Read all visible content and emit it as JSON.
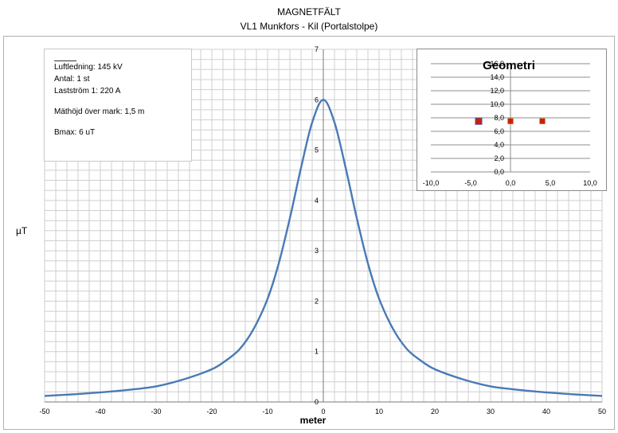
{
  "title": "MAGNETFÄLT",
  "subtitle": "VL1 Munkfors - Kil (Portalstolpe)",
  "info_box": {
    "line1": "Luftledning: 145 kV",
    "line2": "Antal: 1 st",
    "line3": "Lastström 1: 220 A",
    "line4": "Mäthöjd över mark: 1,5 m",
    "line5": "Bmax: 6 uT"
  },
  "chart_data": [
    {
      "type": "line",
      "title": "",
      "xlabel": "meter",
      "ylabel": "µT",
      "xlim": [
        -50,
        50
      ],
      "ylim": [
        0,
        7
      ],
      "x_ticks": [
        -50,
        -40,
        -30,
        -20,
        -10,
        0,
        10,
        20,
        30,
        40,
        50
      ],
      "y_ticks": [
        0,
        1,
        2,
        3,
        4,
        5,
        6,
        7
      ],
      "grid": true,
      "color": "#4a7ab5",
      "series": [
        {
          "x": [
            -50,
            -45,
            -40,
            -35,
            -30,
            -25,
            -20,
            -17.5,
            -15,
            -12.5,
            -10,
            -8,
            -6,
            -4,
            -2,
            0,
            2,
            4,
            6,
            8,
            10,
            12.5,
            15,
            17.5,
            20,
            25,
            30,
            35,
            40,
            45,
            50
          ],
          "y": [
            0.12,
            0.15,
            0.19,
            0.24,
            0.31,
            0.45,
            0.65,
            0.82,
            1.05,
            1.45,
            2.05,
            2.75,
            3.65,
            4.65,
            5.55,
            6.0,
            5.55,
            4.65,
            3.65,
            2.75,
            2.05,
            1.45,
            1.05,
            0.82,
            0.65,
            0.45,
            0.31,
            0.24,
            0.19,
            0.15,
            0.12
          ]
        }
      ]
    },
    {
      "type": "scatter",
      "title": "Geometri",
      "xlim": [
        -10,
        10
      ],
      "ylim": [
        0,
        16
      ],
      "x_ticks": [
        "-10,0",
        "-5,0",
        "0,0",
        "5,0",
        "10,0"
      ],
      "x_tick_values": [
        -10,
        -5,
        0,
        5,
        10
      ],
      "y_ticks": [
        "0,0",
        "2,0",
        "4,0",
        "6,0",
        "8,0",
        "10,0",
        "12,0",
        "14,0",
        "16,0"
      ],
      "y_tick_values": [
        0,
        2,
        4,
        6,
        8,
        10,
        12,
        14,
        16
      ],
      "grid": true,
      "legend": "none",
      "series": [
        {
          "marker_color": "#4a4aa8",
          "x": [
            -4
          ],
          "y": [
            7.5
          ]
        },
        {
          "marker_color": "#cc2200",
          "x": [
            -4,
            0,
            4
          ],
          "y": [
            7.5,
            7.5,
            7.5
          ]
        }
      ]
    }
  ]
}
